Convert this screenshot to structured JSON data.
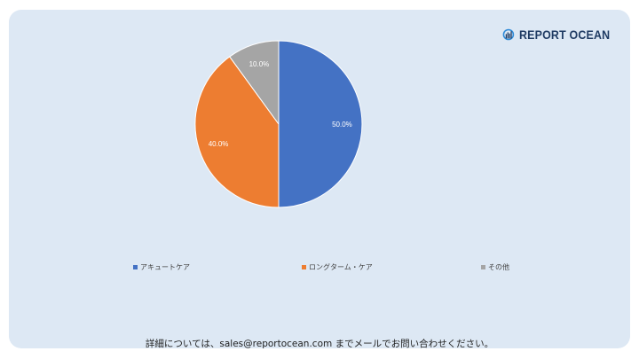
{
  "brand": {
    "logo_text": "REPORT OCEAN"
  },
  "chart_data": {
    "type": "pie",
    "categories": [
      "アキュートケア",
      "ロングターム・ケア",
      "その他"
    ],
    "values": [
      50.0,
      40.0,
      10.0
    ],
    "data_labels": [
      "50.0%",
      "40.0%",
      "10.0%"
    ],
    "colors": [
      "#4472c4",
      "#ed7d31",
      "#a5a5a5"
    ],
    "start_angle_deg": 0,
    "direction": "clockwise",
    "legend_position": "bottom"
  },
  "footer": {
    "text": "詳細については、sales@reportocean.com までメールでお問い合わせください。"
  }
}
